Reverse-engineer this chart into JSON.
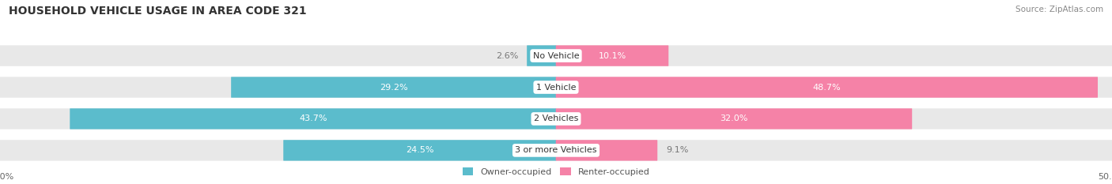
{
  "title": "HOUSEHOLD VEHICLE USAGE IN AREA CODE 321",
  "source": "Source: ZipAtlas.com",
  "categories": [
    "No Vehicle",
    "1 Vehicle",
    "2 Vehicles",
    "3 or more Vehicles"
  ],
  "owner_values": [
    2.6,
    29.2,
    43.7,
    24.5
  ],
  "renter_values": [
    10.1,
    48.7,
    32.0,
    9.1
  ],
  "owner_color": "#5bbccc",
  "renter_color": "#f582a7",
  "bar_bg_color": "#e8e8e8",
  "axis_max": 50.0,
  "figsize": [
    14.06,
    2.33
  ],
  "dpi": 100,
  "title_fontsize": 10,
  "bar_height": 0.62,
  "legend_fontsize": 8,
  "tick_fontsize": 8,
  "source_fontsize": 7.5,
  "value_fontsize": 8
}
